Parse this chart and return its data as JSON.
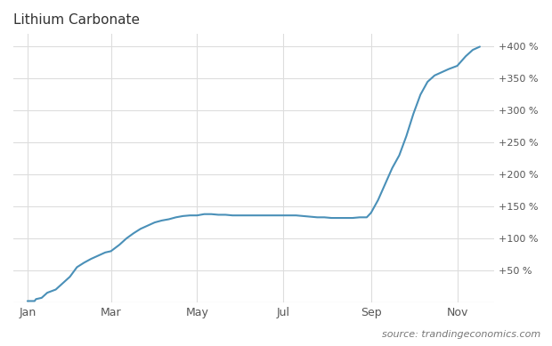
{
  "title": "Lithium Carbonate",
  "source_text": "source: trandingeconomics.com",
  "line_color": "#4a90b8",
  "background_color": "#ffffff",
  "grid_color": "#dddddd",
  "title_fontsize": 11,
  "source_fontsize": 8,
  "ytick_labels": [
    "+50 %",
    "+100 %",
    "+150 %",
    "+200 %",
    "+250 %",
    "+300 %",
    "+350 %",
    "+400 %"
  ],
  "ytick_values": [
    50,
    100,
    150,
    200,
    250,
    300,
    350,
    400
  ],
  "xtick_labels": [
    "Jan",
    "Mar",
    "May",
    "Jul",
    "Sep",
    "Nov"
  ],
  "xtick_positions": [
    0,
    59,
    120,
    181,
    243,
    304
  ],
  "ylim": [
    0,
    420
  ],
  "xlim": [
    -10,
    330
  ],
  "data_x": [
    0,
    5,
    6,
    10,
    14,
    20,
    25,
    30,
    35,
    40,
    45,
    50,
    55,
    59,
    65,
    70,
    75,
    80,
    85,
    90,
    95,
    100,
    105,
    110,
    115,
    120,
    125,
    130,
    135,
    140,
    145,
    150,
    155,
    160,
    165,
    170,
    175,
    181,
    185,
    190,
    195,
    200,
    205,
    210,
    215,
    220,
    225,
    230,
    235,
    240,
    243,
    248,
    253,
    258,
    263,
    268,
    273,
    278,
    283,
    288,
    293,
    298,
    304,
    310,
    315,
    320
  ],
  "data_y": [
    2,
    2,
    5,
    7,
    15,
    20,
    30,
    40,
    55,
    62,
    68,
    73,
    78,
    80,
    90,
    100,
    108,
    115,
    120,
    125,
    128,
    130,
    133,
    135,
    136,
    136,
    138,
    138,
    137,
    137,
    136,
    136,
    136,
    136,
    136,
    136,
    136,
    136,
    136,
    136,
    135,
    134,
    133,
    133,
    132,
    132,
    132,
    132,
    133,
    133,
    140,
    160,
    185,
    210,
    230,
    260,
    295,
    325,
    345,
    355,
    360,
    365,
    370,
    385,
    395,
    400
  ]
}
